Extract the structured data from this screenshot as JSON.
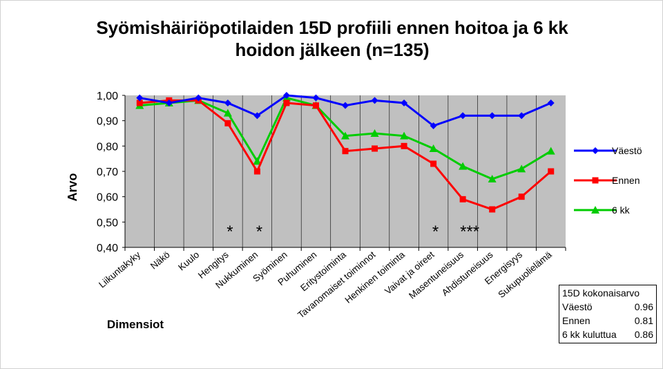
{
  "chart_data": {
    "type": "line",
    "title": "Syömishäiriöpotilaiden 15D profiili ennen hoitoa ja 6 kk hoidon jälkeen (n=135)",
    "title_lines": [
      "Syömishäiriöpotilaiden 15D profiili ennen hoitoa ja 6 kk",
      "hoidon jälkeen (n=135)"
    ],
    "xlabel": "Dimensiot",
    "ylabel": "Arvo",
    "ylim": [
      0.4,
      1.0
    ],
    "yticks": [
      "0,40",
      "0,50",
      "0,60",
      "0,70",
      "0,80",
      "0,90",
      "1,00"
    ],
    "grid": "vertical",
    "legend_position": "right",
    "categories": [
      "Liikuntakyky",
      "Näkö",
      "Kuulo",
      "Hengitys",
      "Nukkuminen",
      "Syöminen",
      "Puhuminen",
      "Eritystoiminta",
      "Tavanomaiset toiminnot",
      "Henkinen toiminta",
      "Vaivat ja oireet",
      "Masentuneisuus",
      "Ahdistuneisuus",
      "Energisyys",
      "Sukupuolielämä"
    ],
    "series": [
      {
        "name": "Väestö",
        "color": "#0000ff",
        "marker": "diamond",
        "values": [
          0.99,
          0.97,
          0.99,
          0.97,
          0.92,
          1.0,
          0.99,
          0.96,
          0.98,
          0.97,
          0.88,
          0.92,
          0.92,
          0.92,
          0.97
        ]
      },
      {
        "name": "Ennen",
        "color": "#ff0000",
        "marker": "square",
        "values": [
          0.97,
          0.98,
          0.98,
          0.89,
          0.7,
          0.97,
          0.96,
          0.78,
          0.79,
          0.8,
          0.73,
          0.59,
          0.55,
          0.6,
          0.7
        ]
      },
      {
        "name": "6 kk",
        "color": "#00cc00",
        "marker": "triangle",
        "values": [
          0.96,
          0.97,
          0.98,
          0.93,
          0.74,
          0.99,
          0.96,
          0.84,
          0.85,
          0.84,
          0.79,
          0.72,
          0.67,
          0.71,
          0.78
        ]
      }
    ],
    "annotations": [
      {
        "category": "Hengitys",
        "text": "*"
      },
      {
        "category": "Nukkuminen",
        "text": "*"
      },
      {
        "category": "Vaivat ja oireet",
        "text": "*"
      },
      {
        "category": "Masentuneisuus",
        "text": "***"
      }
    ]
  },
  "summary": {
    "title": "15D kokonaisarvo",
    "rows": [
      {
        "label": "Väestö",
        "value": "0.96"
      },
      {
        "label": "Ennen",
        "value": "0.81"
      },
      {
        "label": "6 kk kuluttua",
        "value": "0.86"
      }
    ]
  }
}
